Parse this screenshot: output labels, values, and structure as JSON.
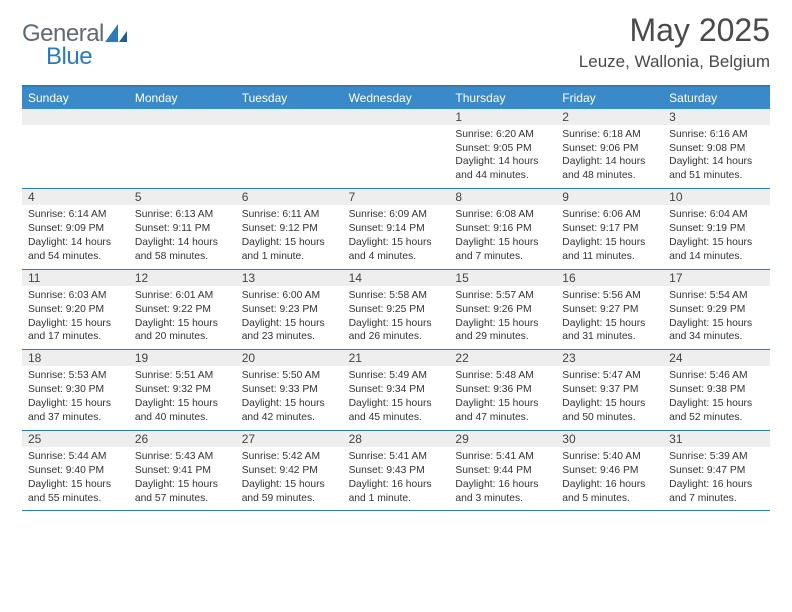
{
  "logo": {
    "text1": "General",
    "text2": "Blue"
  },
  "title": "May 2025",
  "location": "Leuze, Wallonia, Belgium",
  "colors": {
    "header_bar": "#3a8ac9",
    "border": "#2b7bbd",
    "shade": "#eeeeee",
    "text_title": "#4a4a4a",
    "text_body": "#333333",
    "white": "#ffffff"
  },
  "daysOfWeek": [
    "Sunday",
    "Monday",
    "Tuesday",
    "Wednesday",
    "Thursday",
    "Friday",
    "Saturday"
  ],
  "weeks": [
    [
      {
        "n": "",
        "sr": "",
        "ss": "",
        "dl": ""
      },
      {
        "n": "",
        "sr": "",
        "ss": "",
        "dl": ""
      },
      {
        "n": "",
        "sr": "",
        "ss": "",
        "dl": ""
      },
      {
        "n": "",
        "sr": "",
        "ss": "",
        "dl": ""
      },
      {
        "n": "1",
        "sr": "Sunrise: 6:20 AM",
        "ss": "Sunset: 9:05 PM",
        "dl": "Daylight: 14 hours and 44 minutes."
      },
      {
        "n": "2",
        "sr": "Sunrise: 6:18 AM",
        "ss": "Sunset: 9:06 PM",
        "dl": "Daylight: 14 hours and 48 minutes."
      },
      {
        "n": "3",
        "sr": "Sunrise: 6:16 AM",
        "ss": "Sunset: 9:08 PM",
        "dl": "Daylight: 14 hours and 51 minutes."
      }
    ],
    [
      {
        "n": "4",
        "sr": "Sunrise: 6:14 AM",
        "ss": "Sunset: 9:09 PM",
        "dl": "Daylight: 14 hours and 54 minutes."
      },
      {
        "n": "5",
        "sr": "Sunrise: 6:13 AM",
        "ss": "Sunset: 9:11 PM",
        "dl": "Daylight: 14 hours and 58 minutes."
      },
      {
        "n": "6",
        "sr": "Sunrise: 6:11 AM",
        "ss": "Sunset: 9:12 PM",
        "dl": "Daylight: 15 hours and 1 minute."
      },
      {
        "n": "7",
        "sr": "Sunrise: 6:09 AM",
        "ss": "Sunset: 9:14 PM",
        "dl": "Daylight: 15 hours and 4 minutes."
      },
      {
        "n": "8",
        "sr": "Sunrise: 6:08 AM",
        "ss": "Sunset: 9:16 PM",
        "dl": "Daylight: 15 hours and 7 minutes."
      },
      {
        "n": "9",
        "sr": "Sunrise: 6:06 AM",
        "ss": "Sunset: 9:17 PM",
        "dl": "Daylight: 15 hours and 11 minutes."
      },
      {
        "n": "10",
        "sr": "Sunrise: 6:04 AM",
        "ss": "Sunset: 9:19 PM",
        "dl": "Daylight: 15 hours and 14 minutes."
      }
    ],
    [
      {
        "n": "11",
        "sr": "Sunrise: 6:03 AM",
        "ss": "Sunset: 9:20 PM",
        "dl": "Daylight: 15 hours and 17 minutes."
      },
      {
        "n": "12",
        "sr": "Sunrise: 6:01 AM",
        "ss": "Sunset: 9:22 PM",
        "dl": "Daylight: 15 hours and 20 minutes."
      },
      {
        "n": "13",
        "sr": "Sunrise: 6:00 AM",
        "ss": "Sunset: 9:23 PM",
        "dl": "Daylight: 15 hours and 23 minutes."
      },
      {
        "n": "14",
        "sr": "Sunrise: 5:58 AM",
        "ss": "Sunset: 9:25 PM",
        "dl": "Daylight: 15 hours and 26 minutes."
      },
      {
        "n": "15",
        "sr": "Sunrise: 5:57 AM",
        "ss": "Sunset: 9:26 PM",
        "dl": "Daylight: 15 hours and 29 minutes."
      },
      {
        "n": "16",
        "sr": "Sunrise: 5:56 AM",
        "ss": "Sunset: 9:27 PM",
        "dl": "Daylight: 15 hours and 31 minutes."
      },
      {
        "n": "17",
        "sr": "Sunrise: 5:54 AM",
        "ss": "Sunset: 9:29 PM",
        "dl": "Daylight: 15 hours and 34 minutes."
      }
    ],
    [
      {
        "n": "18",
        "sr": "Sunrise: 5:53 AM",
        "ss": "Sunset: 9:30 PM",
        "dl": "Daylight: 15 hours and 37 minutes."
      },
      {
        "n": "19",
        "sr": "Sunrise: 5:51 AM",
        "ss": "Sunset: 9:32 PM",
        "dl": "Daylight: 15 hours and 40 minutes."
      },
      {
        "n": "20",
        "sr": "Sunrise: 5:50 AM",
        "ss": "Sunset: 9:33 PM",
        "dl": "Daylight: 15 hours and 42 minutes."
      },
      {
        "n": "21",
        "sr": "Sunrise: 5:49 AM",
        "ss": "Sunset: 9:34 PM",
        "dl": "Daylight: 15 hours and 45 minutes."
      },
      {
        "n": "22",
        "sr": "Sunrise: 5:48 AM",
        "ss": "Sunset: 9:36 PM",
        "dl": "Daylight: 15 hours and 47 minutes."
      },
      {
        "n": "23",
        "sr": "Sunrise: 5:47 AM",
        "ss": "Sunset: 9:37 PM",
        "dl": "Daylight: 15 hours and 50 minutes."
      },
      {
        "n": "24",
        "sr": "Sunrise: 5:46 AM",
        "ss": "Sunset: 9:38 PM",
        "dl": "Daylight: 15 hours and 52 minutes."
      }
    ],
    [
      {
        "n": "25",
        "sr": "Sunrise: 5:44 AM",
        "ss": "Sunset: 9:40 PM",
        "dl": "Daylight: 15 hours and 55 minutes."
      },
      {
        "n": "26",
        "sr": "Sunrise: 5:43 AM",
        "ss": "Sunset: 9:41 PM",
        "dl": "Daylight: 15 hours and 57 minutes."
      },
      {
        "n": "27",
        "sr": "Sunrise: 5:42 AM",
        "ss": "Sunset: 9:42 PM",
        "dl": "Daylight: 15 hours and 59 minutes."
      },
      {
        "n": "28",
        "sr": "Sunrise: 5:41 AM",
        "ss": "Sunset: 9:43 PM",
        "dl": "Daylight: 16 hours and 1 minute."
      },
      {
        "n": "29",
        "sr": "Sunrise: 5:41 AM",
        "ss": "Sunset: 9:44 PM",
        "dl": "Daylight: 16 hours and 3 minutes."
      },
      {
        "n": "30",
        "sr": "Sunrise: 5:40 AM",
        "ss": "Sunset: 9:46 PM",
        "dl": "Daylight: 16 hours and 5 minutes."
      },
      {
        "n": "31",
        "sr": "Sunrise: 5:39 AM",
        "ss": "Sunset: 9:47 PM",
        "dl": "Daylight: 16 hours and 7 minutes."
      }
    ]
  ]
}
